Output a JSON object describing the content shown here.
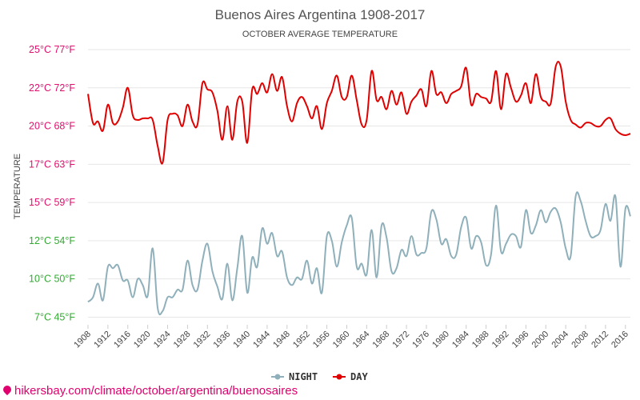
{
  "chart_data": {
    "type": "line",
    "title": "Buenos Aires Argentina 1908-2017",
    "subtitle": "OCTOBER AVERAGE TEMPERATURE",
    "ylabel": "TEMPERATURE",
    "ylim": [
      7,
      25
    ],
    "y_ticks": [
      {
        "value": 25,
        "label": "25°C 77°F",
        "color": "#e0106e"
      },
      {
        "value": 22.5,
        "label": "22°C 72°F",
        "color": "#e0106e"
      },
      {
        "value": 20,
        "label": "20°C 68°F",
        "color": "#e0106e"
      },
      {
        "value": 17.5,
        "label": "17°C 63°F",
        "color": "#e0106e"
      },
      {
        "value": 15,
        "label": "15°C 59°F",
        "color": "#e0106e"
      },
      {
        "value": 12.5,
        "label": "12°C 54°F",
        "color": "#33aa33"
      },
      {
        "value": 10,
        "label": "10°C 50°F",
        "color": "#33aa33"
      },
      {
        "value": 7.5,
        "label": "7°C 45°F",
        "color": "#33aa33"
      }
    ],
    "x_ticks": [
      1908,
      1912,
      1916,
      1920,
      1924,
      1928,
      1932,
      1936,
      1940,
      1944,
      1948,
      1952,
      1956,
      1960,
      1964,
      1968,
      1972,
      1976,
      1980,
      1984,
      1988,
      1992,
      1996,
      2000,
      2004,
      2008,
      2012,
      2016
    ],
    "x": [
      1908,
      1909,
      1910,
      1911,
      1912,
      1913,
      1914,
      1915,
      1916,
      1917,
      1918,
      1919,
      1920,
      1921,
      1922,
      1923,
      1924,
      1925,
      1926,
      1927,
      1928,
      1929,
      1930,
      1931,
      1932,
      1933,
      1934,
      1935,
      1936,
      1937,
      1938,
      1939,
      1940,
      1941,
      1942,
      1943,
      1944,
      1945,
      1946,
      1947,
      1948,
      1949,
      1950,
      1951,
      1952,
      1953,
      1954,
      1955,
      1956,
      1957,
      1958,
      1959,
      1960,
      1961,
      1962,
      1963,
      1964,
      1965,
      1966,
      1967,
      1968,
      1969,
      1970,
      1971,
      1972,
      1973,
      1974,
      1975,
      1976,
      1977,
      1978,
      1979,
      1980,
      1981,
      1982,
      1983,
      1984,
      1985,
      1986,
      1987,
      1988,
      1989,
      1990,
      1991,
      1992,
      1993,
      1994,
      1995,
      1996,
      1997,
      1998,
      1999,
      2000,
      2001,
      2002,
      2003,
      2004,
      2005,
      2006,
      2007,
      2008,
      2009,
      2010,
      2011,
      2012,
      2013,
      2014,
      2015,
      2016,
      2017
    ],
    "series": [
      {
        "name": "NIGHT",
        "color": "#8fb0bb",
        "values": [
          8.5,
          8.8,
          9.7,
          8.6,
          10.8,
          10.7,
          10.9,
          9.9,
          9.9,
          8.8,
          10.0,
          9.6,
          8.9,
          12.0,
          8.1,
          7.9,
          8.8,
          8.8,
          9.3,
          9.3,
          11.2,
          9.6,
          9.3,
          11.2,
          12.3,
          10.5,
          9.5,
          8.7,
          11.0,
          8.6,
          10.7,
          12.8,
          9.1,
          11.4,
          10.8,
          13.3,
          12.3,
          13.0,
          11.5,
          11.8,
          10.1,
          9.6,
          10.1,
          10.0,
          11.2,
          9.7,
          10.7,
          9.1,
          12.8,
          12.5,
          10.8,
          12.4,
          13.5,
          14.0,
          10.8,
          11.0,
          10.3,
          13.2,
          10.1,
          13.5,
          12.7,
          10.5,
          10.7,
          11.9,
          11.5,
          12.8,
          11.6,
          11.7,
          12.0,
          14.4,
          13.9,
          12.3,
          12.6,
          11.5,
          11.6,
          13.4,
          14.0,
          12.0,
          12.8,
          12.4,
          10.9,
          11.6,
          14.8,
          11.8,
          12.3,
          12.9,
          12.8,
          12.1,
          14.5,
          13.0,
          13.5,
          14.5,
          13.7,
          14.4,
          14.6,
          13.7,
          12.0,
          11.5,
          15.4,
          15.1,
          13.8,
          12.8,
          12.8,
          13.2,
          14.9,
          13.8,
          15.4,
          10.8,
          14.6,
          14.1
        ]
      },
      {
        "name": "DAY",
        "color": "#e00000",
        "values": [
          22.1,
          20.2,
          20.3,
          19.7,
          21.4,
          20.2,
          20.3,
          21.2,
          22.5,
          20.7,
          20.4,
          20.5,
          20.5,
          20.4,
          18.7,
          17.6,
          20.4,
          20.8,
          20.7,
          20.0,
          21.4,
          20.3,
          20.1,
          22.8,
          22.4,
          22.2,
          21.0,
          19.1,
          21.3,
          19.1,
          21.6,
          21.6,
          18.9,
          22.4,
          22.1,
          22.8,
          22.2,
          23.4,
          22.3,
          23.2,
          21.3,
          20.3,
          21.5,
          21.9,
          21.3,
          20.5,
          21.3,
          19.8,
          21.5,
          22.3,
          23.3,
          21.9,
          21.9,
          23.3,
          21.7,
          20.1,
          20.4,
          23.6,
          21.7,
          21.9,
          21.1,
          22.3,
          21.4,
          22.2,
          20.8,
          21.6,
          22.0,
          22.4,
          21.3,
          23.6,
          22.1,
          22.2,
          21.5,
          22.1,
          22.3,
          22.6,
          23.8,
          21.4,
          22.1,
          21.9,
          21.8,
          21.6,
          23.6,
          21.1,
          23.4,
          22.5,
          21.6,
          22.0,
          22.8,
          21.5,
          23.4,
          21.9,
          21.6,
          21.5,
          23.9,
          23.9,
          21.6,
          20.4,
          20.1,
          19.9,
          20.2,
          20.2,
          20.0,
          20.0,
          20.4,
          20.5,
          19.8,
          19.5,
          19.4,
          19.5
        ]
      }
    ],
    "grid": true,
    "legend_position": "bottom-center"
  },
  "watermark": "hikersbay.com/climate/october/argentina/buenosaires"
}
